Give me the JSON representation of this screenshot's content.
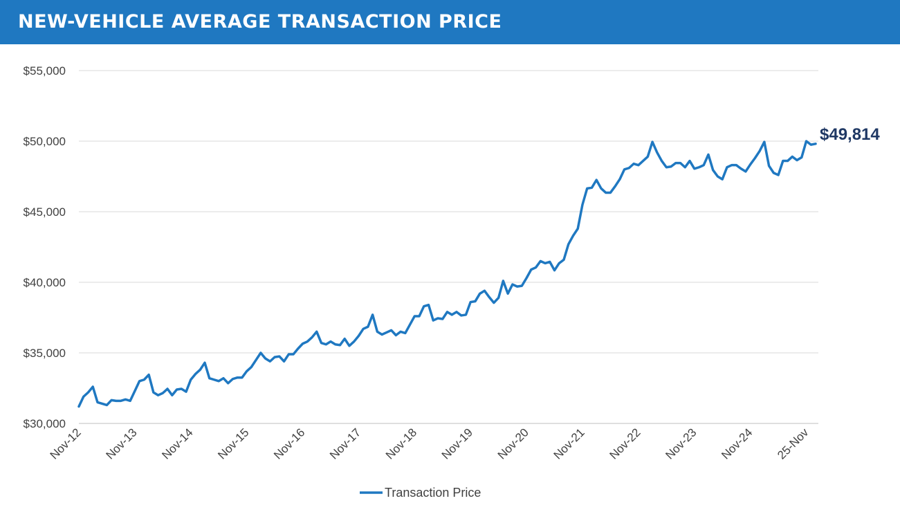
{
  "banner": {
    "title": "NEW-VEHICLE AVERAGE TRANSACTION PRICE"
  },
  "colors": {
    "banner": "#1f78c1",
    "line": "#1f78c1",
    "annotation": "#1f3864",
    "grid": "#d9d9d9"
  },
  "chart_data": {
    "type": "line",
    "title": "NEW-VEHICLE AVERAGE TRANSACTION PRICE",
    "xlabel": "",
    "ylabel": "",
    "ylim": [
      30000,
      55000
    ],
    "yticks": [
      30000,
      35000,
      40000,
      45000,
      50000,
      55000
    ],
    "ytick_labels": [
      "$30,000",
      "$35,000",
      "$40,000",
      "$45,000",
      "$50,000",
      "$55,000"
    ],
    "x_tick_labels": [
      "Nov-12",
      "Nov-13",
      "Nov-14",
      "Nov-15",
      "Nov-16",
      "Nov-17",
      "Nov-18",
      "Nov-19",
      "Nov-20",
      "Nov-21",
      "Nov-22",
      "Nov-23",
      "Nov-24",
      "25-Nov"
    ],
    "x_tick_index": [
      0,
      12,
      24,
      36,
      48,
      60,
      72,
      84,
      96,
      108,
      120,
      132,
      144,
      156
    ],
    "grid": true,
    "legend": {
      "position": "bottom-center",
      "entries": [
        "Transaction Price"
      ]
    },
    "annotation": {
      "text": "$49,814",
      "value": 49814
    },
    "series": [
      {
        "name": "Transaction Price",
        "values": [
          31200,
          31900,
          32200,
          32600,
          31500,
          31400,
          31300,
          31650,
          31600,
          31600,
          31700,
          31600,
          32300,
          33000,
          33100,
          33450,
          32200,
          32000,
          32150,
          32450,
          32000,
          32400,
          32450,
          32250,
          33100,
          33500,
          33800,
          34300,
          33200,
          33100,
          33000,
          33200,
          32850,
          33150,
          33250,
          33250,
          33700,
          34000,
          34500,
          35000,
          34600,
          34400,
          34700,
          34750,
          34400,
          34900,
          34900,
          35300,
          35650,
          35800,
          36100,
          36500,
          35700,
          35600,
          35800,
          35600,
          35550,
          36000,
          35500,
          35800,
          36200,
          36700,
          36850,
          37700,
          36500,
          36300,
          36450,
          36600,
          36250,
          36500,
          36400,
          37000,
          37600,
          37600,
          38300,
          38400,
          37300,
          37450,
          37400,
          37900,
          37700,
          37900,
          37650,
          37700,
          38600,
          38650,
          39200,
          39400,
          38950,
          38550,
          38900,
          40100,
          39200,
          39850,
          39700,
          39750,
          40300,
          40900,
          41050,
          41500,
          41350,
          41450,
          40850,
          41350,
          41600,
          42700,
          43300,
          43800,
          45500,
          46650,
          46700,
          47250,
          46650,
          46350,
          46350,
          46800,
          47300,
          48000,
          48100,
          48400,
          48300,
          48600,
          48900,
          49950,
          49200,
          48600,
          48150,
          48200,
          48450,
          48450,
          48150,
          48600,
          48050,
          48150,
          48300,
          49050,
          47950,
          47500,
          47300,
          48150,
          48300,
          48300,
          48050,
          47850,
          48350,
          48800,
          49300,
          49950,
          48250,
          47750,
          47600,
          48600,
          48600,
          48900,
          48650,
          48850,
          50000,
          49750,
          49814
        ]
      }
    ]
  }
}
